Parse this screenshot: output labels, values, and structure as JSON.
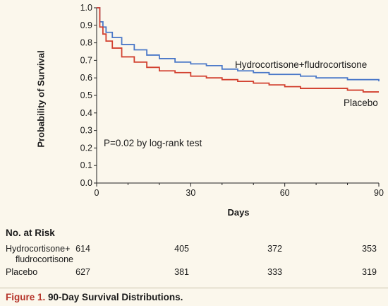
{
  "chart_data": {
    "type": "line",
    "xlabel": "Days",
    "ylabel": "Probability of Survival",
    "xlim": [
      0,
      90
    ],
    "ylim": [
      0.0,
      1.0
    ],
    "xticks": [
      "0",
      "30",
      "60",
      "90"
    ],
    "yticks": [
      "0.0",
      "0.1",
      "0.2",
      "0.3",
      "0.4",
      "0.5",
      "0.6",
      "0.7",
      "0.8",
      "0.9",
      "1.0"
    ],
    "annotation": "P=0.02 by log-rank test",
    "series": [
      {
        "name": "Hydrocortisone+fludrocortisone",
        "color": "#4a78c8",
        "x": [
          0,
          1,
          2,
          3,
          5,
          8,
          12,
          16,
          20,
          25,
          30,
          35,
          40,
          45,
          50,
          55,
          60,
          65,
          70,
          75,
          80,
          85,
          90
        ],
        "y": [
          1.0,
          0.92,
          0.89,
          0.86,
          0.83,
          0.79,
          0.76,
          0.73,
          0.71,
          0.69,
          0.68,
          0.67,
          0.65,
          0.64,
          0.63,
          0.62,
          0.62,
          0.61,
          0.6,
          0.6,
          0.59,
          0.59,
          0.58
        ]
      },
      {
        "name": "Placebo",
        "color": "#d2402f",
        "x": [
          0,
          1,
          2,
          3,
          5,
          8,
          12,
          16,
          20,
          25,
          30,
          35,
          40,
          45,
          50,
          55,
          60,
          65,
          70,
          75,
          80,
          85,
          90
        ],
        "y": [
          1.0,
          0.89,
          0.85,
          0.81,
          0.77,
          0.72,
          0.69,
          0.66,
          0.64,
          0.63,
          0.61,
          0.6,
          0.59,
          0.58,
          0.57,
          0.56,
          0.55,
          0.54,
          0.54,
          0.54,
          0.53,
          0.52,
          0.52
        ]
      }
    ]
  },
  "risk_table": {
    "title": "No. at Risk",
    "rows": [
      {
        "label": "Hydrocortisone+",
        "label_cont": "fludrocortisone",
        "values": [
          "614",
          "405",
          "372",
          "353"
        ]
      },
      {
        "label": "Placebo",
        "values": [
          "627",
          "381",
          "333",
          "319"
        ]
      }
    ]
  },
  "caption": {
    "number": "Figure 1.",
    "text": "90-Day Survival Distributions."
  }
}
